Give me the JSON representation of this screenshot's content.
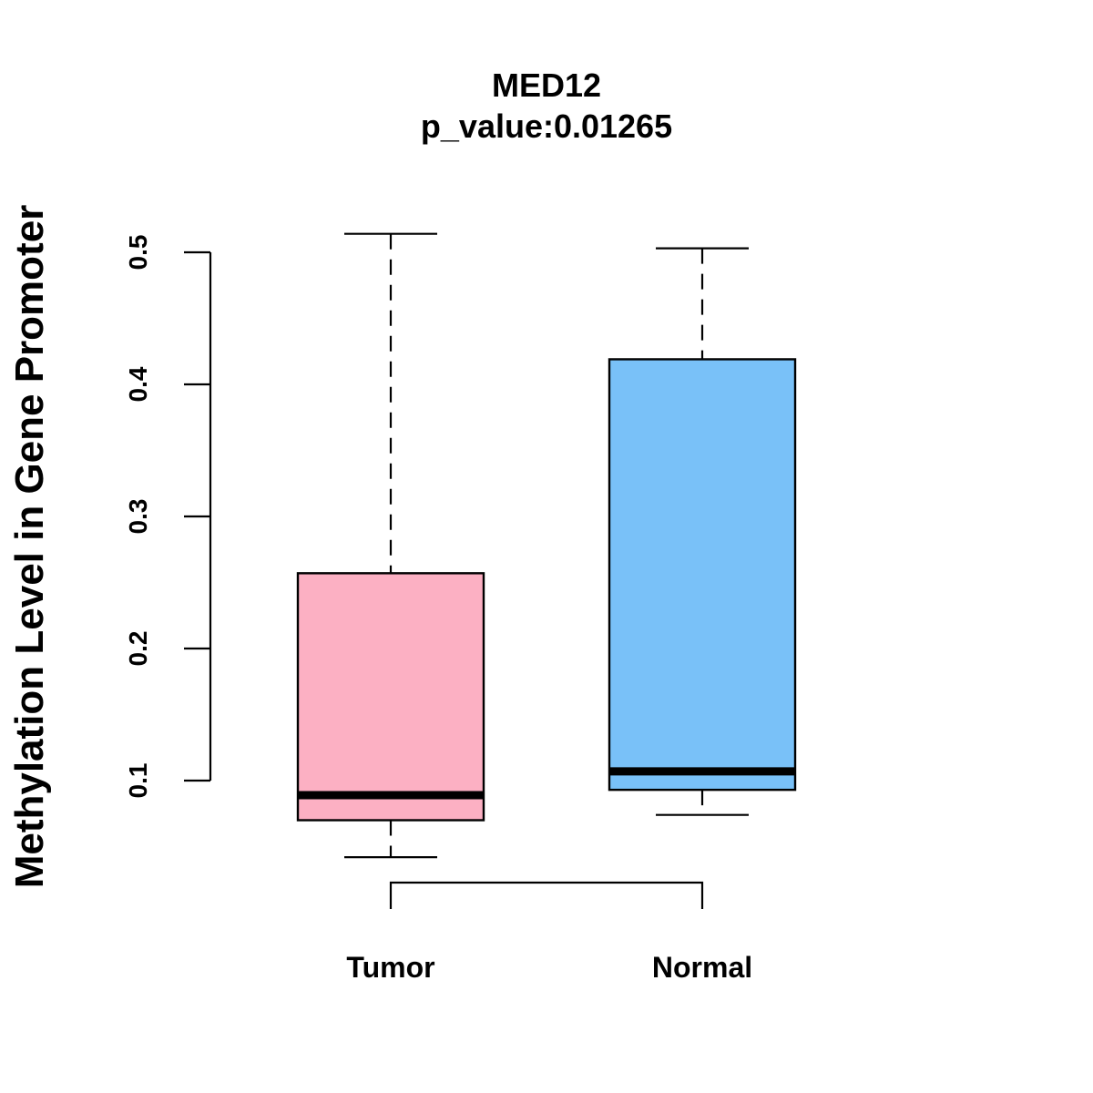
{
  "chart_data": {
    "type": "box",
    "title": "MED12",
    "subtitle": "p_value:0.01265",
    "xlabel": "",
    "ylabel": "Methylation Level in Gene Promoter",
    "y_ticks": [
      0.1,
      0.2,
      0.3,
      0.4,
      0.5
    ],
    "y_tick_labels": [
      "0.1",
      "0.2",
      "0.3",
      "0.4",
      "0.5"
    ],
    "categories": [
      "Tumor",
      "Normal"
    ],
    "boxes": [
      {
        "name": "Tumor",
        "whisker_low": 0.042,
        "q1": 0.07,
        "median": 0.089,
        "q3": 0.257,
        "whisker_high": 0.514,
        "color": "#FCB0C3"
      },
      {
        "name": "Normal",
        "whisker_low": 0.074,
        "q1": 0.093,
        "median": 0.107,
        "q3": 0.419,
        "whisker_high": 0.503,
        "color": "#79C1F8"
      }
    ],
    "bracket": {
      "from": "Tumor",
      "to": "Normal"
    },
    "grid": false
  }
}
